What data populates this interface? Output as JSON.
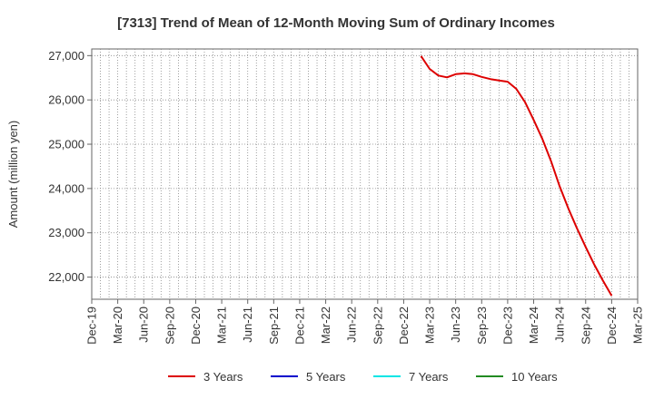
{
  "chart_data": {
    "type": "line",
    "title": "[7313]  Trend of Mean of 12-Month Moving Sum of Ordinary Incomes",
    "xlabel": "",
    "ylabel": "Amount (million yen)",
    "x_tick_labels": [
      "Dec-19",
      "Mar-20",
      "Jun-20",
      "Sep-20",
      "Dec-20",
      "Mar-21",
      "Jun-21",
      "Sep-21",
      "Dec-21",
      "Mar-22",
      "Jun-22",
      "Sep-22",
      "Dec-22",
      "Mar-23",
      "Jun-23",
      "Sep-23",
      "Dec-23",
      "Mar-24",
      "Jun-24",
      "Sep-24",
      "Dec-24",
      "Mar-25"
    ],
    "y_ticks": [
      22000,
      23000,
      24000,
      25000,
      26000,
      27000
    ],
    "y_tick_labels": [
      "22,000",
      "23,000",
      "24,000",
      "25,000",
      "26,000",
      "27,000"
    ],
    "ylim": [
      21500,
      27150
    ],
    "xlim": [
      "Dec-19",
      "Mar-25"
    ],
    "grid": true,
    "legend_position": "bottom",
    "series": [
      {
        "name": "3 Years",
        "color": "#dd0000",
        "x": [
          "Feb-23",
          "Mar-23",
          "Apr-23",
          "May-23",
          "Jun-23",
          "Jul-23",
          "Aug-23",
          "Sep-23",
          "Oct-23",
          "Nov-23",
          "Dec-23",
          "Jan-24",
          "Feb-24",
          "Mar-24",
          "Apr-24",
          "May-24",
          "Jun-24",
          "Jul-24",
          "Aug-24",
          "Sep-24",
          "Oct-24",
          "Nov-24",
          "Dec-24"
        ],
        "values": [
          26990,
          26700,
          26550,
          26510,
          26580,
          26600,
          26580,
          26520,
          26470,
          26440,
          26410,
          26250,
          25950,
          25550,
          25120,
          24620,
          24050,
          23550,
          23100,
          22680,
          22280,
          21920,
          21580
        ]
      },
      {
        "name": "5 Years",
        "color": "#0000cc",
        "x": [],
        "values": []
      },
      {
        "name": "7 Years",
        "color": "#00e5e5",
        "x": [],
        "values": []
      },
      {
        "name": "10 Years",
        "color": "#228b22",
        "x": [],
        "values": []
      }
    ]
  }
}
